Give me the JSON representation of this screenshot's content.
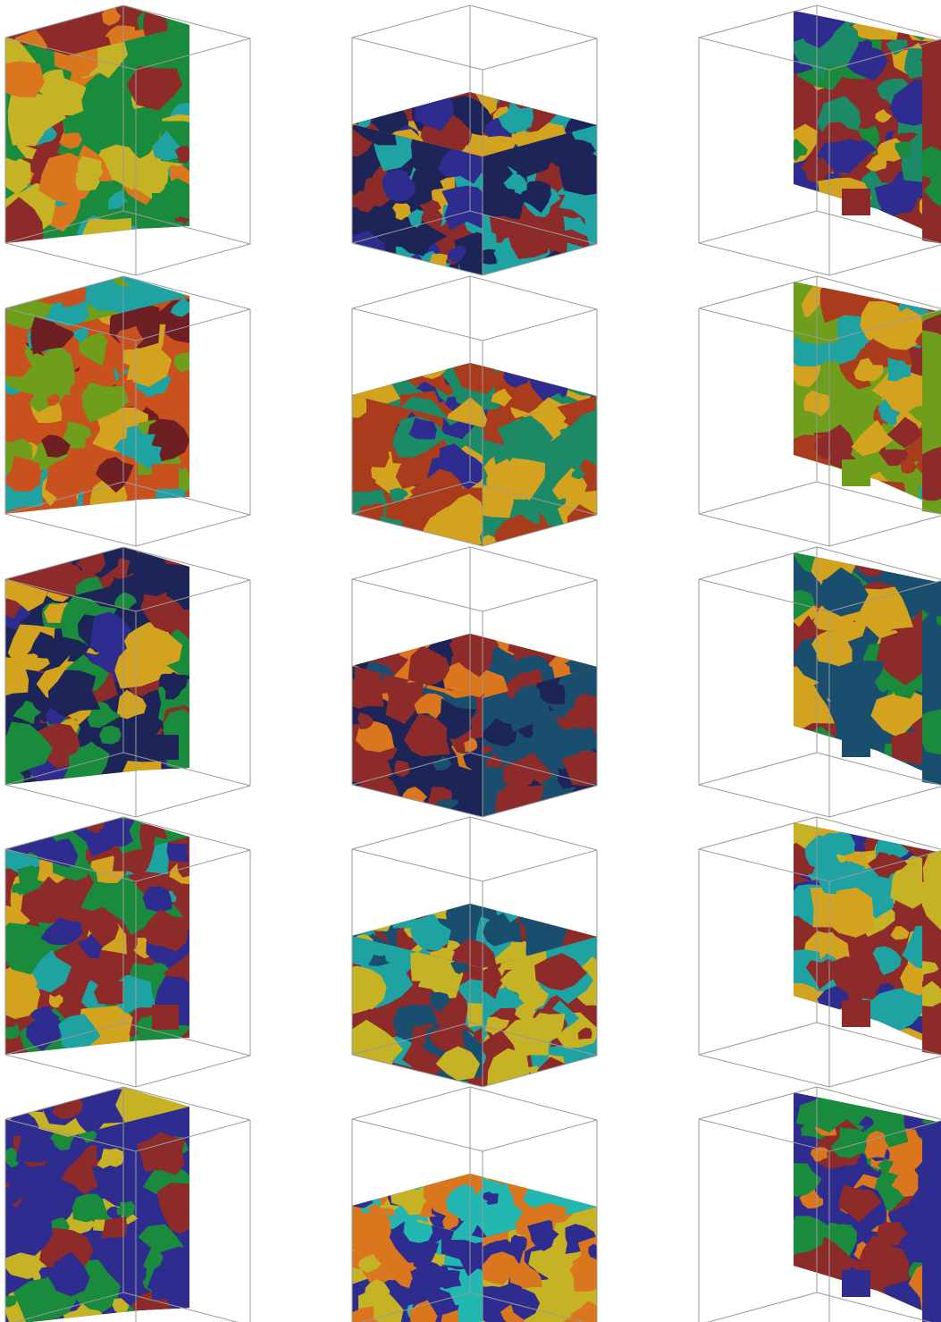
{
  "figure": {
    "grid": {
      "rows": 5,
      "columns": 3
    },
    "section_views": [
      "side-section",
      "horizontal-section",
      "back-section"
    ],
    "palette": {
      "navy": "#1d2457",
      "indigo": "#2e2d8f",
      "teal_dark": "#1a4e6e",
      "teal": "#1ea2a2",
      "cyan": "#22b7b0",
      "green": "#1a8a3d",
      "sea_green": "#1c8a66",
      "olive_green": "#6f9e1c",
      "yellow_green": "#a8b91a",
      "yellow": "#c6b225",
      "gold": "#d3a320",
      "orange": "#d9761e",
      "orange_red": "#c8511e",
      "rust": "#a83c1c",
      "crimson": "#8d2a2a",
      "maroon": "#6e1f24"
    },
    "panels": [
      {
        "row": 1,
        "view": "side-section",
        "dominant": [
          "green",
          "crimson",
          "orange",
          "teal",
          "yellow"
        ]
      },
      {
        "row": 1,
        "view": "horizontal-section",
        "dominant": [
          "navy",
          "teal",
          "crimson",
          "gold",
          "indigo"
        ]
      },
      {
        "row": 1,
        "view": "back-section",
        "dominant": [
          "crimson",
          "green",
          "gold",
          "sea_green",
          "indigo"
        ]
      },
      {
        "row": 2,
        "view": "side-section",
        "dominant": [
          "orange_red",
          "olive_green",
          "teal",
          "gold",
          "maroon"
        ]
      },
      {
        "row": 2,
        "view": "horizontal-section",
        "dominant": [
          "rust",
          "sea_green",
          "gold",
          "indigo"
        ]
      },
      {
        "row": 2,
        "view": "back-section",
        "dominant": [
          "olive_green",
          "crimson",
          "gold",
          "teal",
          "rust"
        ]
      },
      {
        "row": 3,
        "view": "side-section",
        "dominant": [
          "navy",
          "crimson",
          "green",
          "gold",
          "indigo"
        ]
      },
      {
        "row": 3,
        "view": "horizontal-section",
        "dominant": [
          "navy",
          "teal_dark",
          "crimson",
          "orange"
        ]
      },
      {
        "row": 3,
        "view": "back-section",
        "dominant": [
          "teal_dark",
          "green",
          "crimson",
          "gold"
        ]
      },
      {
        "row": 4,
        "view": "side-section",
        "dominant": [
          "crimson",
          "green",
          "indigo",
          "teal",
          "gold"
        ]
      },
      {
        "row": 4,
        "view": "horizontal-section",
        "dominant": [
          "crimson",
          "teal",
          "yellow",
          "teal_dark"
        ]
      },
      {
        "row": 4,
        "view": "back-section",
        "dominant": [
          "crimson",
          "yellow",
          "indigo",
          "teal",
          "gold"
        ]
      },
      {
        "row": 5,
        "view": "side-section",
        "dominant": [
          "indigo",
          "yellow",
          "crimson",
          "green"
        ]
      },
      {
        "row": 5,
        "view": "horizontal-section",
        "dominant": [
          "indigo",
          "yellow",
          "orange",
          "cyan"
        ]
      },
      {
        "row": 5,
        "view": "back-section",
        "dominant": [
          "indigo",
          "orange",
          "crimson",
          "green"
        ]
      }
    ]
  }
}
